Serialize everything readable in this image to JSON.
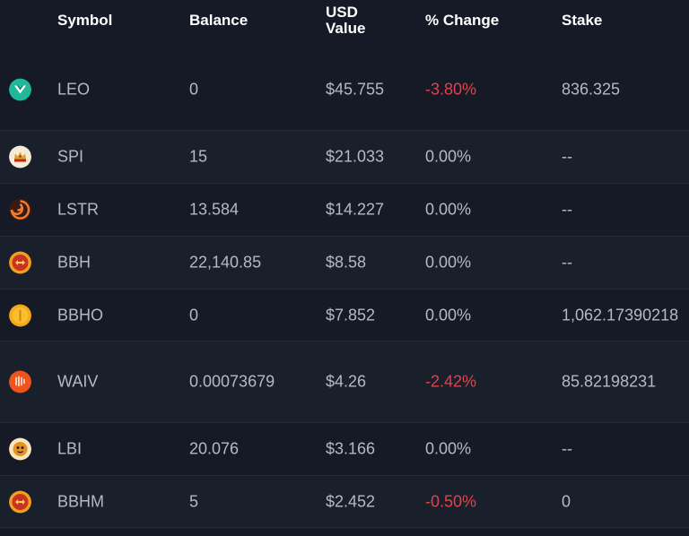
{
  "header": {
    "symbol": "Symbol",
    "balance": "Balance",
    "usd_line1": "USD",
    "usd_line2": "Value",
    "change": "% Change",
    "stake": "Stake"
  },
  "colors": {
    "background": "#151a26",
    "row_alt": "#1a1f2c",
    "negative": "#e0434b",
    "text": "#b4b9c4",
    "header_text": "#ffffff"
  },
  "rows": [
    {
      "icon": "leo-token-icon",
      "symbol": "LEO",
      "balance": "0",
      "usd": "$45.755",
      "change": "-3.80%",
      "negative": true,
      "stake": "836.325"
    },
    {
      "icon": "spi-token-icon",
      "symbol": "SPI",
      "balance": "15",
      "usd": "$21.033",
      "change": "0.00%",
      "negative": false,
      "stake": "--"
    },
    {
      "icon": "lstr-token-icon",
      "symbol": "LSTR",
      "balance": "13.584",
      "usd": "$14.227",
      "change": "0.00%",
      "negative": false,
      "stake": "--"
    },
    {
      "icon": "bbh-token-icon",
      "symbol": "BBH",
      "balance": "22,140.85",
      "usd": "$8.58",
      "change": "0.00%",
      "negative": false,
      "stake": "--"
    },
    {
      "icon": "bbho-token-icon",
      "symbol": "BBHO",
      "balance": "0",
      "usd": "$7.852",
      "change": "0.00%",
      "negative": false,
      "stake": "1,062.17390218"
    },
    {
      "icon": "waiv-token-icon",
      "symbol": "WAIV",
      "balance": "0.00073679",
      "usd": "$4.26",
      "change": "-2.42%",
      "negative": true,
      "stake": "85.82198231"
    },
    {
      "icon": "lbi-token-icon",
      "symbol": "LBI",
      "balance": "20.076",
      "usd": "$3.166",
      "change": "0.00%",
      "negative": false,
      "stake": "--"
    },
    {
      "icon": "bbhm-token-icon",
      "symbol": "BBHM",
      "balance": "5",
      "usd": "$2.452",
      "change": "-0.50%",
      "negative": true,
      "stake": "0"
    }
  ]
}
